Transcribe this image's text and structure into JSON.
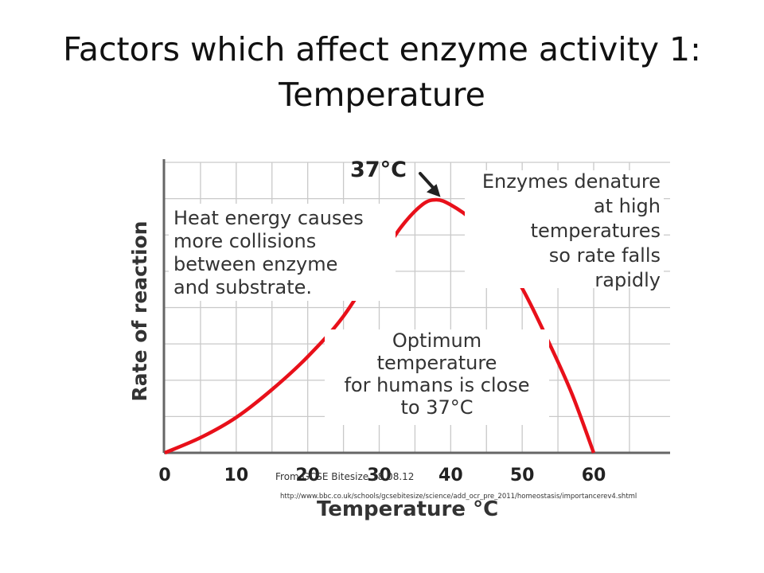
{
  "slide": {
    "title_line1": "Factors which affect enzyme activity 1:",
    "title_line2": "Temperature"
  },
  "chart_data": {
    "type": "line",
    "xlabel": "Temperature °C",
    "ylabel": "Rate of reaction",
    "xlim": [
      0,
      70
    ],
    "ylim": [
      0,
      10
    ],
    "x_ticks": [
      0,
      10,
      20,
      30,
      40,
      50,
      60
    ],
    "x_tick_labels": [
      "0",
      "10",
      "20",
      "30",
      "40",
      "50",
      "60"
    ],
    "grid": true,
    "line_color": "#e8101a",
    "series": [
      {
        "x": [
          0,
          5,
          10,
          15,
          20,
          25,
          30,
          33,
          36,
          38,
          40,
          43,
          46,
          50,
          54,
          57,
          60
        ],
        "y": [
          0,
          0.6,
          1.4,
          2.5,
          3.8,
          5.4,
          7.6,
          8.9,
          9.8,
          10,
          9.8,
          9.2,
          8.2,
          6.5,
          4.2,
          2.3,
          0
        ]
      }
    ],
    "annotations": {
      "peak_label": "37°C",
      "heat": [
        "Heat energy causes",
        "more collisions",
        "between enzyme",
        "and substrate."
      ],
      "denature": [
        "Enzymes denature",
        "at high",
        "temperatures",
        "so rate falls",
        "rapidly"
      ],
      "optimum": [
        "Optimum",
        "temperature",
        "for humans is close",
        "to 37°C"
      ]
    }
  },
  "source": {
    "credit": "From GCSE Bitesize 18.08.12",
    "url": "http://www.bbc.co.uk/schools/gcsebitesize/science/add_ocr_pre_2011/homeostasis/importancerev4.shtml"
  }
}
